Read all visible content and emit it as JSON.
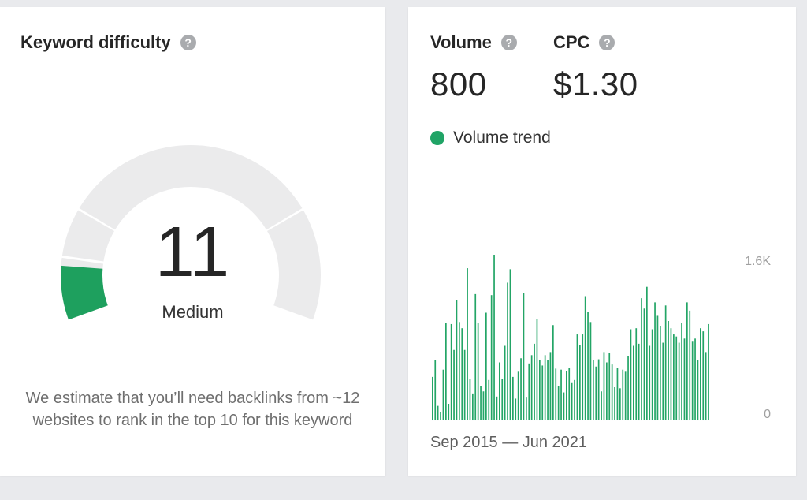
{
  "keyword_difficulty": {
    "title": "Keyword difficulty",
    "help": "?",
    "score": "11",
    "score_value": 11,
    "level": "Medium",
    "description": "We estimate that you’ll need backlinks from ~12 websites to rank in the top 10 for this keyword",
    "colors": {
      "fill": "#1ea05e",
      "track": "#ebebec"
    }
  },
  "metrics": {
    "volume": {
      "label": "Volume",
      "help": "?",
      "value": "800"
    },
    "cpc": {
      "label": "CPC",
      "help": "?",
      "value": "$1.30"
    }
  },
  "trend": {
    "legend": "Volume trend",
    "date_range": "Sep 2015 — Jun 2021",
    "color": "#23a566"
  },
  "chart_data": {
    "type": "bar",
    "title": "",
    "series": [
      {
        "name": "Volume trend",
        "values": [
          420,
          580,
          140,
          80,
          490,
          940,
          160,
          930,
          680,
          1160,
          950,
          890,
          680,
          1470,
          400,
          260,
          1220,
          940,
          330,
          280,
          1040,
          390,
          1210,
          1600,
          230,
          560,
          400,
          720,
          1330,
          1460,
          420,
          210,
          470,
          600,
          1230,
          220,
          550,
          630,
          740,
          980,
          580,
          530,
          630,
          580,
          660,
          920,
          500,
          330,
          490,
          270,
          480,
          510,
          360,
          390,
          830,
          730,
          830,
          1200,
          1050,
          950,
          580,
          520,
          590,
          280,
          660,
          560,
          650,
          540,
          320,
          510,
          310,
          490,
          470,
          620,
          880,
          720,
          890,
          740,
          1180,
          1080,
          1290,
          720,
          880,
          1140,
          1010,
          910,
          750,
          1110,
          960,
          890,
          830,
          810,
          750,
          940,
          790,
          1140,
          1060,
          760,
          790,
          580,
          890,
          860,
          660,
          930
        ]
      }
    ],
    "y_ticks": [
      "1.6K",
      "0"
    ],
    "ylim": [
      0,
      1600
    ],
    "x_range_label": "Sep 2015 — Jun 2021",
    "grid": false
  }
}
